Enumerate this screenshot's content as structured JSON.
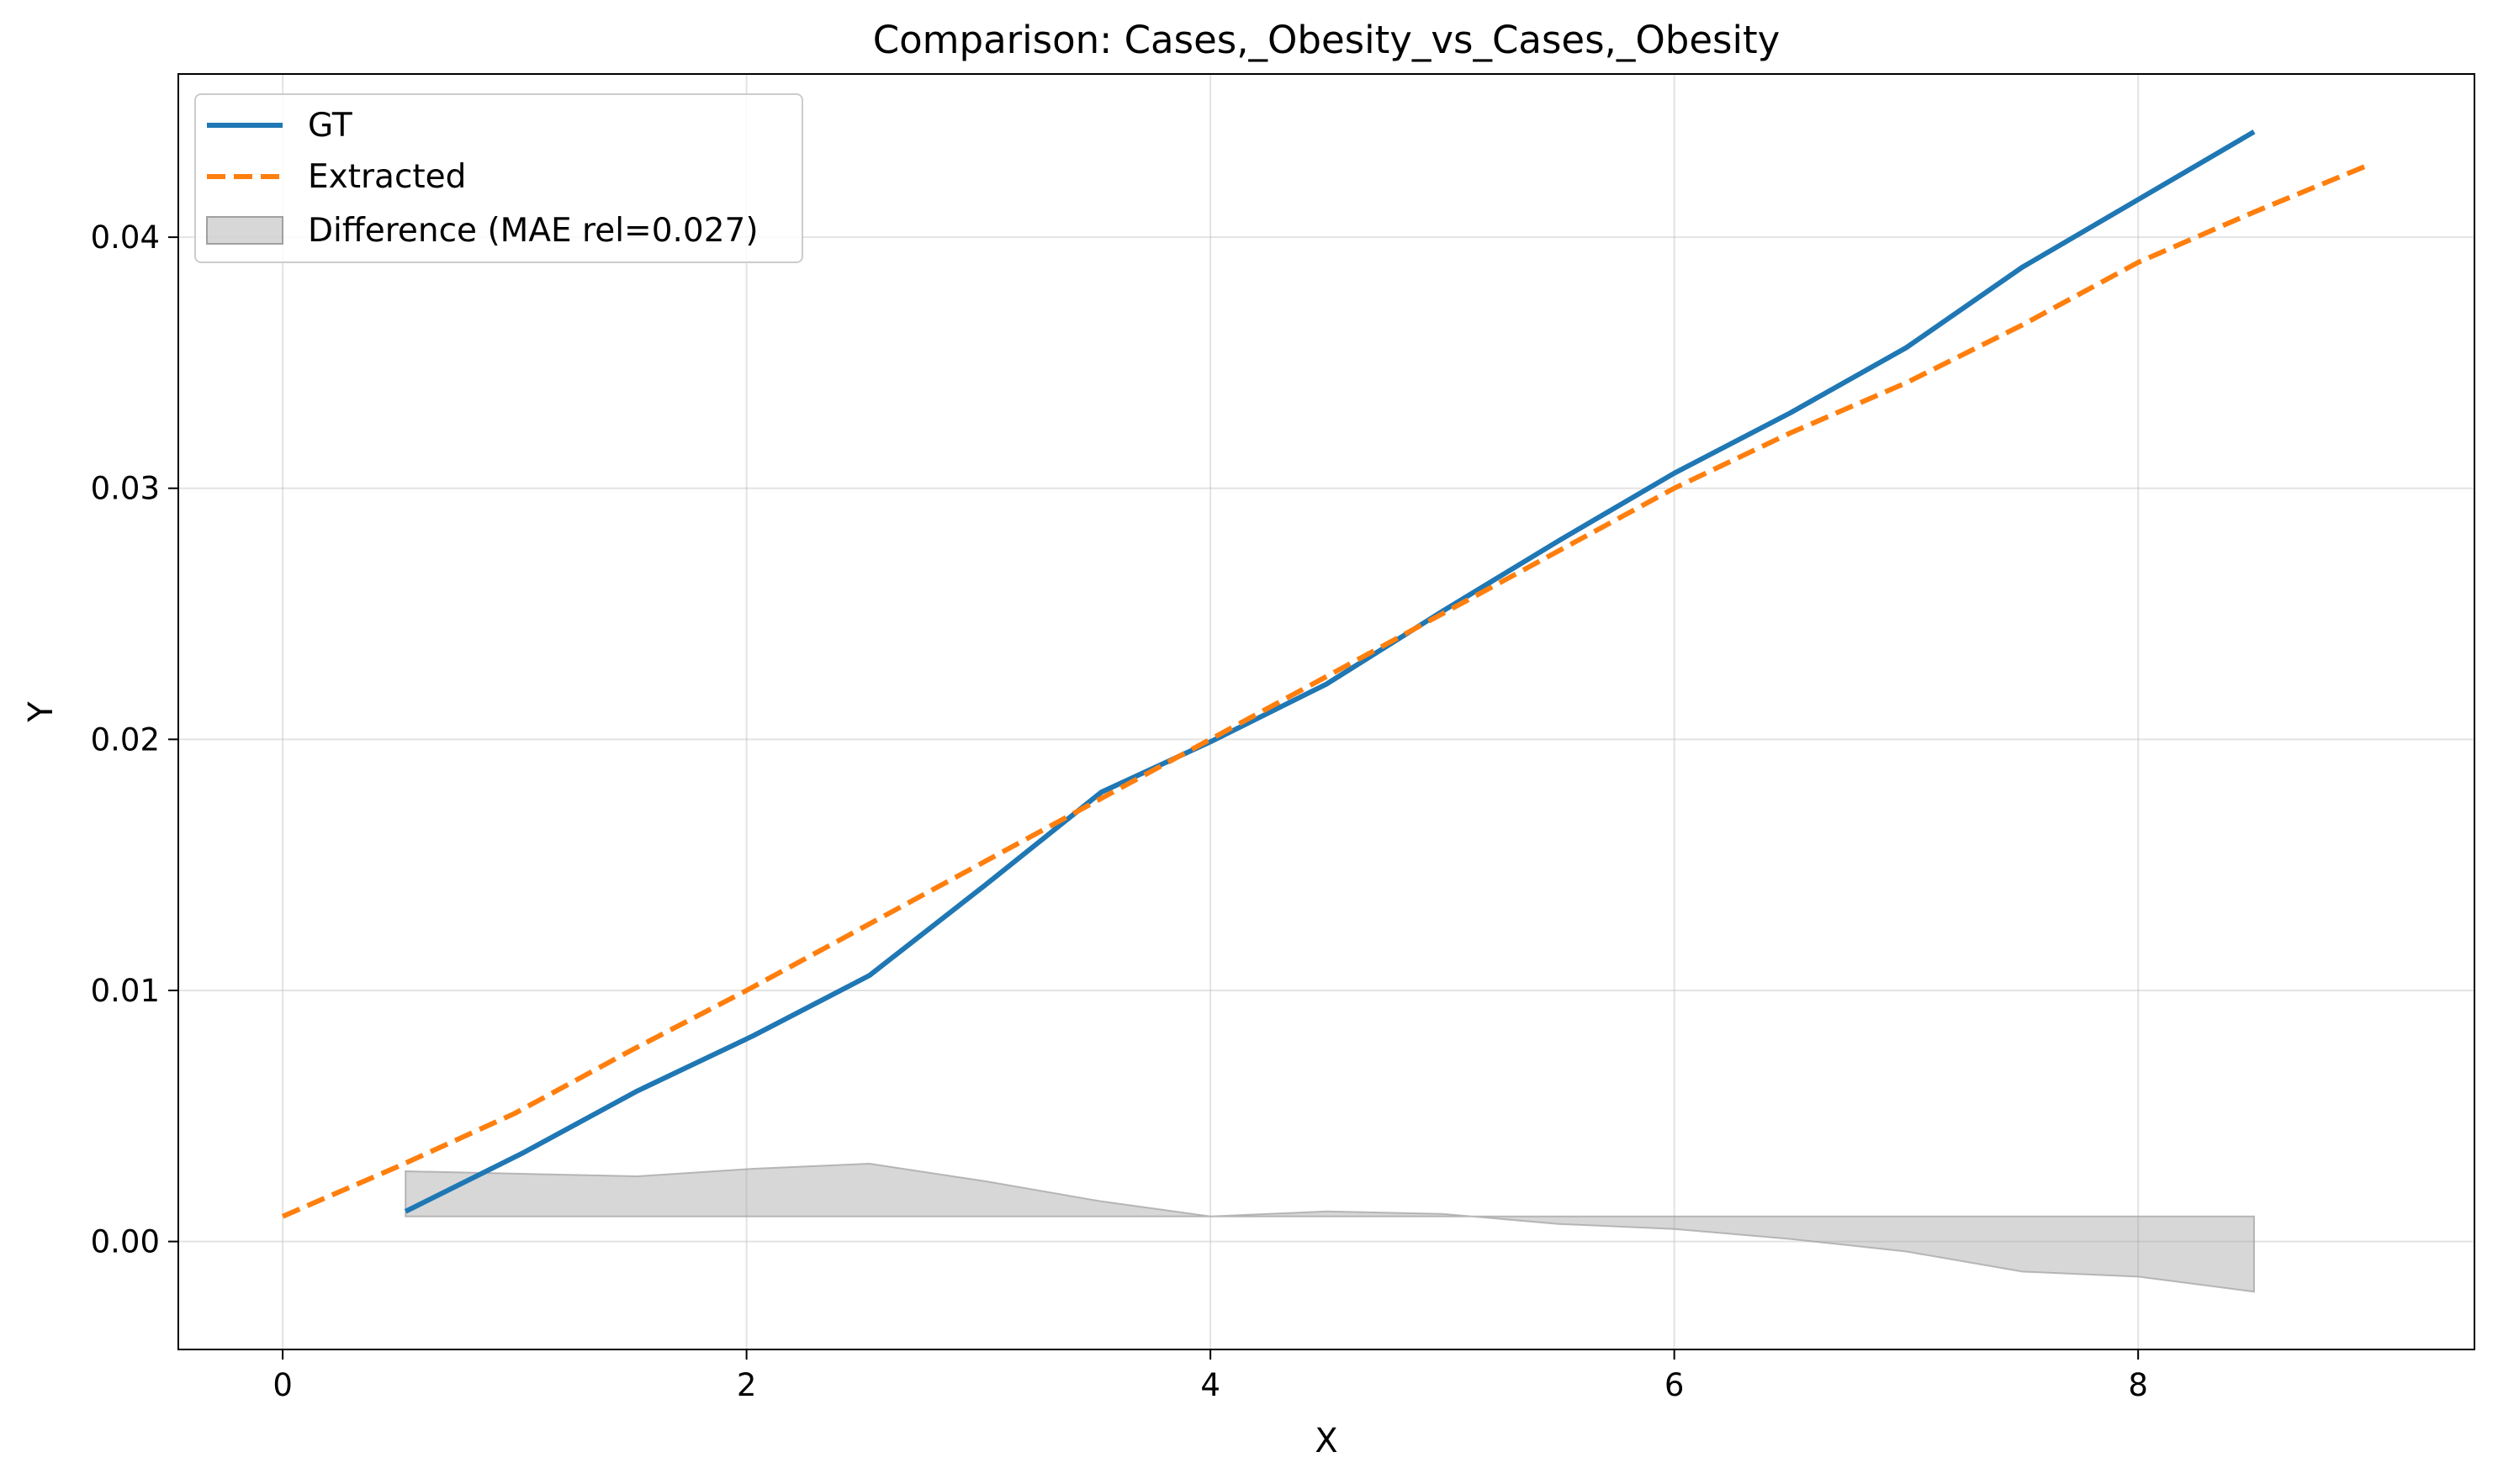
{
  "chart_data": {
    "type": "line",
    "title": "Comparison: Cases,_Obesity_vs_Cases,_Obesity",
    "xlabel": "X",
    "ylabel": "Y",
    "xlim": [
      -0.45,
      9.45
    ],
    "ylim": [
      -0.0043,
      0.0465
    ],
    "grid": true,
    "legend_position": "top-left",
    "x_ticks": [
      0,
      2,
      4,
      6,
      8
    ],
    "y_ticks": [
      0.0,
      0.01,
      0.02,
      0.03,
      0.04
    ],
    "x_tick_labels": [
      "0",
      "2",
      "4",
      "6",
      "8"
    ],
    "y_tick_labels": [
      "0.00",
      "0.01",
      "0.02",
      "0.03",
      "0.04"
    ],
    "series": [
      {
        "name": "GT",
        "style": "solid",
        "color": "#1f77b4",
        "x": [
          0.53,
          1.03,
          1.53,
          2.03,
          2.53,
          3.03,
          3.53,
          4.0,
          4.5,
          5.0,
          5.5,
          6.0,
          6.5,
          7.0,
          7.5,
          8.0,
          8.5
        ],
        "y": [
          0.0012,
          0.0035,
          0.006,
          0.0082,
          0.0106,
          0.0142,
          0.0179,
          0.0199,
          0.0222,
          0.0251,
          0.0279,
          0.0306,
          0.033,
          0.0356,
          0.0388,
          0.0415,
          0.0442
        ]
      },
      {
        "name": "Extracted",
        "style": "dashed",
        "color": "#ff7f0e",
        "x": [
          0,
          0.5,
          1.0,
          1.5,
          2.0,
          2.5,
          3.0,
          3.5,
          4.0,
          4.5,
          5.0,
          5.5,
          6.0,
          6.5,
          7.0,
          7.5,
          8.0,
          8.5,
          9.0
        ],
        "y": [
          0.001,
          0.003,
          0.0051,
          0.0076,
          0.01,
          0.0125,
          0.015,
          0.0175,
          0.02,
          0.0225,
          0.025,
          0.0275,
          0.03,
          0.0322,
          0.0342,
          0.0365,
          0.039,
          0.041,
          0.0429
        ]
      }
    ],
    "difference": {
      "name": "Difference (MAE rel=0.027)",
      "color": "#a0a0a0",
      "baseline": 0.001,
      "x": [
        0.53,
        1.03,
        1.53,
        2.03,
        2.53,
        3.03,
        3.53,
        4.0,
        4.5,
        5.0,
        5.5,
        6.0,
        6.5,
        7.0,
        7.5,
        8.0,
        8.5
      ],
      "y": [
        0.0028,
        0.0027,
        0.0026,
        0.0029,
        0.0031,
        0.0024,
        0.0016,
        0.001,
        0.0012,
        0.0011,
        0.0007,
        0.0005,
        0.0001,
        -0.0004,
        -0.0012,
        -0.0014,
        -0.002
      ]
    }
  }
}
